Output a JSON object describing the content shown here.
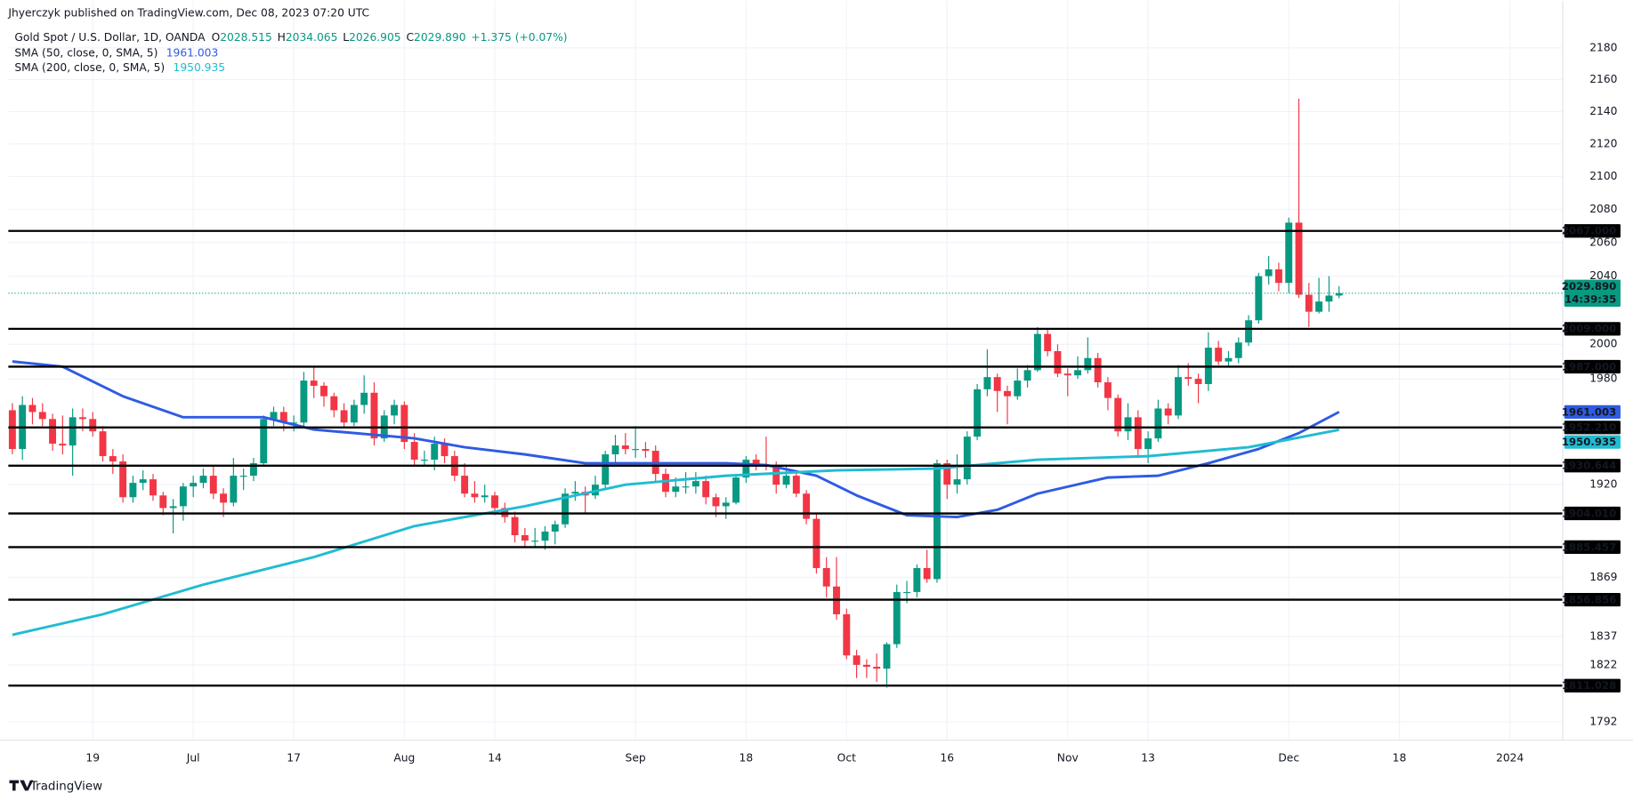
{
  "header": {
    "byline": "Jhyerczyk published on TradingView.com, Dec 08, 2023 07:20 UTC",
    "symbol": "Gold Spot / U.S. Dollar, 1D, OANDA",
    "ohlc": [
      {
        "key": "O",
        "value": 2028.515,
        "label": "2028.515"
      },
      {
        "key": "H",
        "value": 2034.065,
        "label": "2034.065"
      },
      {
        "key": "L",
        "value": 2026.905,
        "label": "2026.905"
      },
      {
        "key": "C",
        "value": 2029.89,
        "label": "2029.890"
      }
    ],
    "change": "+1.375 (+0.07%)"
  },
  "chart_data": {
    "type": "candlestick",
    "up_color": "#089981",
    "down_color": "#f23645",
    "log_scale": true,
    "grid": true,
    "ylim": [
      1782.8,
      2209.9
    ],
    "yticks": [
      2180,
      2160,
      2140,
      2120,
      2100,
      2080,
      2060,
      2040,
      2000,
      1980,
      1920,
      1869,
      1837,
      1822,
      1792
    ],
    "xlim": [
      -0.4,
      154.2
    ],
    "xticks": [
      {
        "value": 8,
        "label": "19"
      },
      {
        "value": 18,
        "label": "Jul"
      },
      {
        "value": 28,
        "label": "17"
      },
      {
        "value": 39,
        "label": "Aug"
      },
      {
        "value": 48,
        "label": "14"
      },
      {
        "value": 62,
        "label": "Sep"
      },
      {
        "value": 73,
        "label": "18"
      },
      {
        "value": 83,
        "label": "Oct"
      },
      {
        "value": 93,
        "label": "16"
      },
      {
        "value": 105,
        "label": "Nov"
      },
      {
        "value": 113,
        "label": "13"
      },
      {
        "value": 127,
        "label": "Dec"
      },
      {
        "value": 138,
        "label": "18"
      },
      {
        "value": 149,
        "label": "2024"
      }
    ],
    "candles": [
      [
        1962,
        1966,
        1937,
        1940
      ],
      [
        1940,
        1970,
        1934,
        1965
      ],
      [
        1965,
        1969,
        1954,
        1961
      ],
      [
        1961,
        1966,
        1953,
        1957
      ],
      [
        1957,
        1960,
        1939,
        1943
      ],
      [
        1943,
        1959,
        1937,
        1942
      ],
      [
        1942,
        1963,
        1925,
        1958
      ],
      [
        1958,
        1963,
        1950,
        1957
      ],
      [
        1957,
        1961,
        1947,
        1950
      ],
      [
        1950,
        1953,
        1933,
        1936
      ],
      [
        1936,
        1940,
        1926,
        1933
      ],
      [
        1933,
        1937,
        1910,
        1913
      ],
      [
        1913,
        1925,
        1910,
        1921
      ],
      [
        1921,
        1928,
        1917,
        1923
      ],
      [
        1923,
        1926,
        1911,
        1914
      ],
      [
        1914,
        1916,
        1903,
        1907
      ],
      [
        1907,
        1912,
        1893,
        1908
      ],
      [
        1908,
        1921,
        1900,
        1919
      ],
      [
        1919,
        1925,
        1913,
        1921
      ],
      [
        1921,
        1929,
        1918,
        1925
      ],
      [
        1925,
        1930,
        1912,
        1915
      ],
      [
        1915,
        1918,
        1902,
        1910
      ],
      [
        1910,
        1935,
        1908,
        1925
      ],
      [
        1925,
        1929,
        1917,
        1925
      ],
      [
        1925,
        1935,
        1922,
        1932
      ],
      [
        1932,
        1959,
        1930,
        1957
      ],
      [
        1957,
        1964,
        1953,
        1961
      ],
      [
        1961,
        1964,
        1950,
        1955
      ],
      [
        1955,
        1959,
        1950,
        1955
      ],
      [
        1955,
        1984,
        1953,
        1979
      ],
      [
        1979,
        1987,
        1969,
        1976
      ],
      [
        1976,
        1978,
        1964,
        1970
      ],
      [
        1970,
        1972,
        1958,
        1962
      ],
      [
        1962,
        1966,
        1952,
        1955
      ],
      [
        1955,
        1968,
        1953,
        1965
      ],
      [
        1965,
        1982,
        1960,
        1972
      ],
      [
        1972,
        1978,
        1942,
        1946
      ],
      [
        1946,
        1962,
        1944,
        1959
      ],
      [
        1959,
        1968,
        1954,
        1965
      ],
      [
        1965,
        1967,
        1940,
        1944
      ],
      [
        1944,
        1949,
        1930,
        1934
      ],
      [
        1934,
        1939,
        1930,
        1934
      ],
      [
        1934,
        1947,
        1928,
        1943
      ],
      [
        1943,
        1946,
        1932,
        1936
      ],
      [
        1936,
        1939,
        1922,
        1925
      ],
      [
        1925,
        1932,
        1913,
        1915
      ],
      [
        1915,
        1922,
        1910,
        1913
      ],
      [
        1913,
        1920,
        1910,
        1914
      ],
      [
        1914,
        1916,
        1903,
        1907
      ],
      [
        1907,
        1910,
        1899,
        1902
      ],
      [
        1902,
        1905,
        1888,
        1892
      ],
      [
        1892,
        1896,
        1885,
        1889
      ],
      [
        1889,
        1896,
        1885,
        1889
      ],
      [
        1889,
        1897,
        1884,
        1894
      ],
      [
        1894,
        1900,
        1887,
        1898
      ],
      [
        1898,
        1918,
        1896,
        1915
      ],
      [
        1915,
        1922,
        1911,
        1916
      ],
      [
        1916,
        1919,
        1904,
        1914
      ],
      [
        1914,
        1925,
        1912,
        1920
      ],
      [
        1920,
        1939,
        1917,
        1937
      ],
      [
        1937,
        1948,
        1932,
        1942
      ],
      [
        1942,
        1949,
        1937,
        1940
      ],
      [
        1940,
        1953,
        1935,
        1940
      ],
      [
        1940,
        1944,
        1935,
        1939
      ],
      [
        1939,
        1942,
        1922,
        1926
      ],
      [
        1926,
        1929,
        1913,
        1916
      ],
      [
        1916,
        1924,
        1913,
        1919
      ],
      [
        1919,
        1927,
        1915,
        1919
      ],
      [
        1919,
        1927,
        1915,
        1922
      ],
      [
        1922,
        1925,
        1909,
        1913
      ],
      [
        1913,
        1915,
        1902,
        1908
      ],
      [
        1908,
        1913,
        1901,
        1910
      ],
      [
        1910,
        1926,
        1909,
        1924
      ],
      [
        1924,
        1936,
        1921,
        1934
      ],
      [
        1934,
        1937,
        1928,
        1931
      ],
      [
        1931,
        1947,
        1928,
        1930
      ],
      [
        1930,
        1933,
        1915,
        1920
      ],
      [
        1920,
        1930,
        1918,
        1925
      ],
      [
        1925,
        1928,
        1913,
        1915
      ],
      [
        1915,
        1917,
        1898,
        1901
      ],
      [
        1901,
        1904,
        1871,
        1874
      ],
      [
        1874,
        1880,
        1858,
        1864
      ],
      [
        1864,
        1880,
        1846,
        1849
      ],
      [
        1849,
        1852,
        1825,
        1827
      ],
      [
        1827,
        1830,
        1815,
        1822
      ],
      [
        1822,
        1825,
        1815,
        1821
      ],
      [
        1821,
        1828,
        1813,
        1820
      ],
      [
        1820,
        1834,
        1810,
        1833
      ],
      [
        1833,
        1865,
        1831,
        1861
      ],
      [
        1861,
        1867,
        1855,
        1861
      ],
      [
        1861,
        1876,
        1858,
        1874
      ],
      [
        1874,
        1884,
        1866,
        1868
      ],
      [
        1868,
        1934,
        1866,
        1932
      ],
      [
        1932,
        1934,
        1912,
        1920
      ],
      [
        1920,
        1937,
        1915,
        1923
      ],
      [
        1923,
        1950,
        1920,
        1947
      ],
      [
        1947,
        1977,
        1945,
        1974
      ],
      [
        1974,
        1997,
        1970,
        1981
      ],
      [
        1981,
        1983,
        1961,
        1973
      ],
      [
        1973,
        1976,
        1954,
        1970
      ],
      [
        1970,
        1986,
        1968,
        1979
      ],
      [
        1979,
        1988,
        1975,
        1985
      ],
      [
        1985,
        2010,
        1984,
        2006
      ],
      [
        2006,
        2009,
        1993,
        1996
      ],
      [
        1996,
        2000,
        1981,
        1983
      ],
      [
        1983,
        1986,
        1970,
        1982
      ],
      [
        1982,
        1993,
        1980,
        1985
      ],
      [
        1985,
        2004,
        1983,
        1992
      ],
      [
        1992,
        1995,
        1975,
        1978
      ],
      [
        1978,
        1981,
        1962,
        1969
      ],
      [
        1969,
        1971,
        1947,
        1950
      ],
      [
        1950,
        1966,
        1945,
        1958
      ],
      [
        1958,
        1962,
        1935,
        1940
      ],
      [
        1940,
        1950,
        1932,
        1946
      ],
      [
        1946,
        1968,
        1944,
        1963
      ],
      [
        1963,
        1966,
        1954,
        1959
      ],
      [
        1959,
        1988,
        1957,
        1981
      ],
      [
        1981,
        1989,
        1976,
        1980
      ],
      [
        1980,
        1983,
        1966,
        1977
      ],
      [
        1977,
        2007,
        1973,
        1998
      ],
      [
        1998,
        2002,
        1988,
        1990
      ],
      [
        1990,
        1996,
        1987,
        1992
      ],
      [
        1992,
        2004,
        1989,
        2001
      ],
      [
        2001,
        2017,
        1999,
        2014
      ],
      [
        2014,
        2042,
        2012,
        2040
      ],
      [
        2040,
        2052,
        2035,
        2044
      ],
      [
        2044,
        2048,
        2031,
        2036
      ],
      [
        2036,
        2075,
        2030,
        2072
      ],
      [
        2072,
        2148,
        2027,
        2029
      ],
      [
        2029,
        2036,
        2010,
        2019
      ],
      [
        2019,
        2039,
        2018,
        2025
      ],
      [
        2025,
        2040,
        2019,
        2028.515
      ],
      [
        2028.515,
        2034.065,
        2026.905,
        2029.89
      ]
    ],
    "series": [
      {
        "name": "SMA (50, close, 0, SMA, 5)",
        "color": "#2f5be3",
        "x": [
          0,
          5,
          11,
          17,
          25,
          30,
          40,
          45,
          51,
          57,
          63,
          71,
          75,
          80,
          84,
          89,
          94,
          98,
          102,
          109,
          114,
          119,
          124,
          128,
          132
        ],
        "values": [
          1990,
          1987,
          1970,
          1958,
          1958,
          1951,
          1946,
          1941,
          1937,
          1932,
          1932,
          1932,
          1931,
          1925,
          1914,
          1903,
          1902,
          1906,
          1915,
          1924,
          1925,
          1932,
          1940,
          1949,
          1961.003
        ],
        "last_label": "1961.003"
      },
      {
        "name": "SMA (200, close, 0, SMA, 5)",
        "color": "#1fbcd2",
        "x": [
          0,
          9,
          19,
          30,
          40,
          51,
          61,
          71,
          82,
          92,
          102,
          113,
          123,
          132
        ],
        "values": [
          1838,
          1849,
          1865,
          1880,
          1897,
          1908,
          1920,
          1925,
          1928,
          1929,
          1934,
          1936,
          1941,
          1950.935
        ],
        "last_label": "1950.935"
      }
    ],
    "levels": [
      {
        "value": 2067,
        "label": "2067.000"
      },
      {
        "value": 2009,
        "label": "2009.000"
      },
      {
        "value": 1987,
        "label": "1987.000"
      },
      {
        "value": 1952.21,
        "label": "1952.210"
      },
      {
        "value": 1930.644,
        "label": "1930.644"
      },
      {
        "value": 1904.01,
        "label": "1904.010"
      },
      {
        "value": 1885.457,
        "label": "1885.457"
      },
      {
        "value": 1856.856,
        "label": "1856.856"
      },
      {
        "value": 1811.028,
        "label": "1811.028"
      }
    ],
    "last_price": {
      "value": 2029.89,
      "label": "2029.890",
      "countdown": "14:39:35"
    }
  },
  "footer": {
    "brand": "TradingView"
  }
}
